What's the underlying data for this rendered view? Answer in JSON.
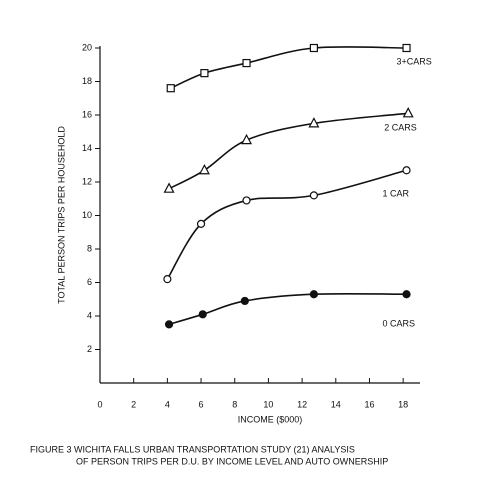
{
  "chart_data": {
    "type": "line",
    "x_label": "INCOME ($000)",
    "y_label": "TOTAL PERSON TRIPS PER HOUSEHOLD",
    "caption": [
      "FIGURE 3  WICHITA FALLS URBAN TRANSPORTATION STUDY (21) ANALYSIS",
      "OF PERSON TRIPS PER D.U. BY INCOME LEVEL AND AUTO OWNERSHIP"
    ],
    "xlim": [
      0,
      19
    ],
    "ylim": [
      0,
      20
    ],
    "xticks": [
      0,
      2,
      4,
      6,
      8,
      10,
      12,
      14,
      16,
      18
    ],
    "yticks": [
      2,
      4,
      6,
      8,
      10,
      12,
      14,
      16,
      18,
      20
    ],
    "series": [
      {
        "name": "3+CARS",
        "marker": "square",
        "color": "#111111",
        "x": [
          4.2,
          6.2,
          8.7,
          12.7,
          18.2
        ],
        "values": [
          17.6,
          18.5,
          19.1,
          20,
          20
        ]
      },
      {
        "name": "2 CARS",
        "marker": "triangle",
        "color": "#111111",
        "x": [
          4.1,
          6.2,
          8.7,
          12.7,
          18.3
        ],
        "values": [
          11.6,
          12.7,
          14.5,
          15.5,
          16.1
        ]
      },
      {
        "name": "1 CAR",
        "marker": "circle-open",
        "color": "#111111",
        "x": [
          4.0,
          6.0,
          8.7,
          12.7,
          18.2
        ],
        "values": [
          6.2,
          9.5,
          10.9,
          11.2,
          12.7
        ]
      },
      {
        "name": "0 CARS",
        "marker": "circle-filled",
        "color": "#111111",
        "x": [
          4.1,
          6.1,
          8.6,
          12.7,
          18.2
        ],
        "values": [
          3.5,
          4.1,
          4.9,
          5.3,
          5.3
        ]
      }
    ]
  }
}
